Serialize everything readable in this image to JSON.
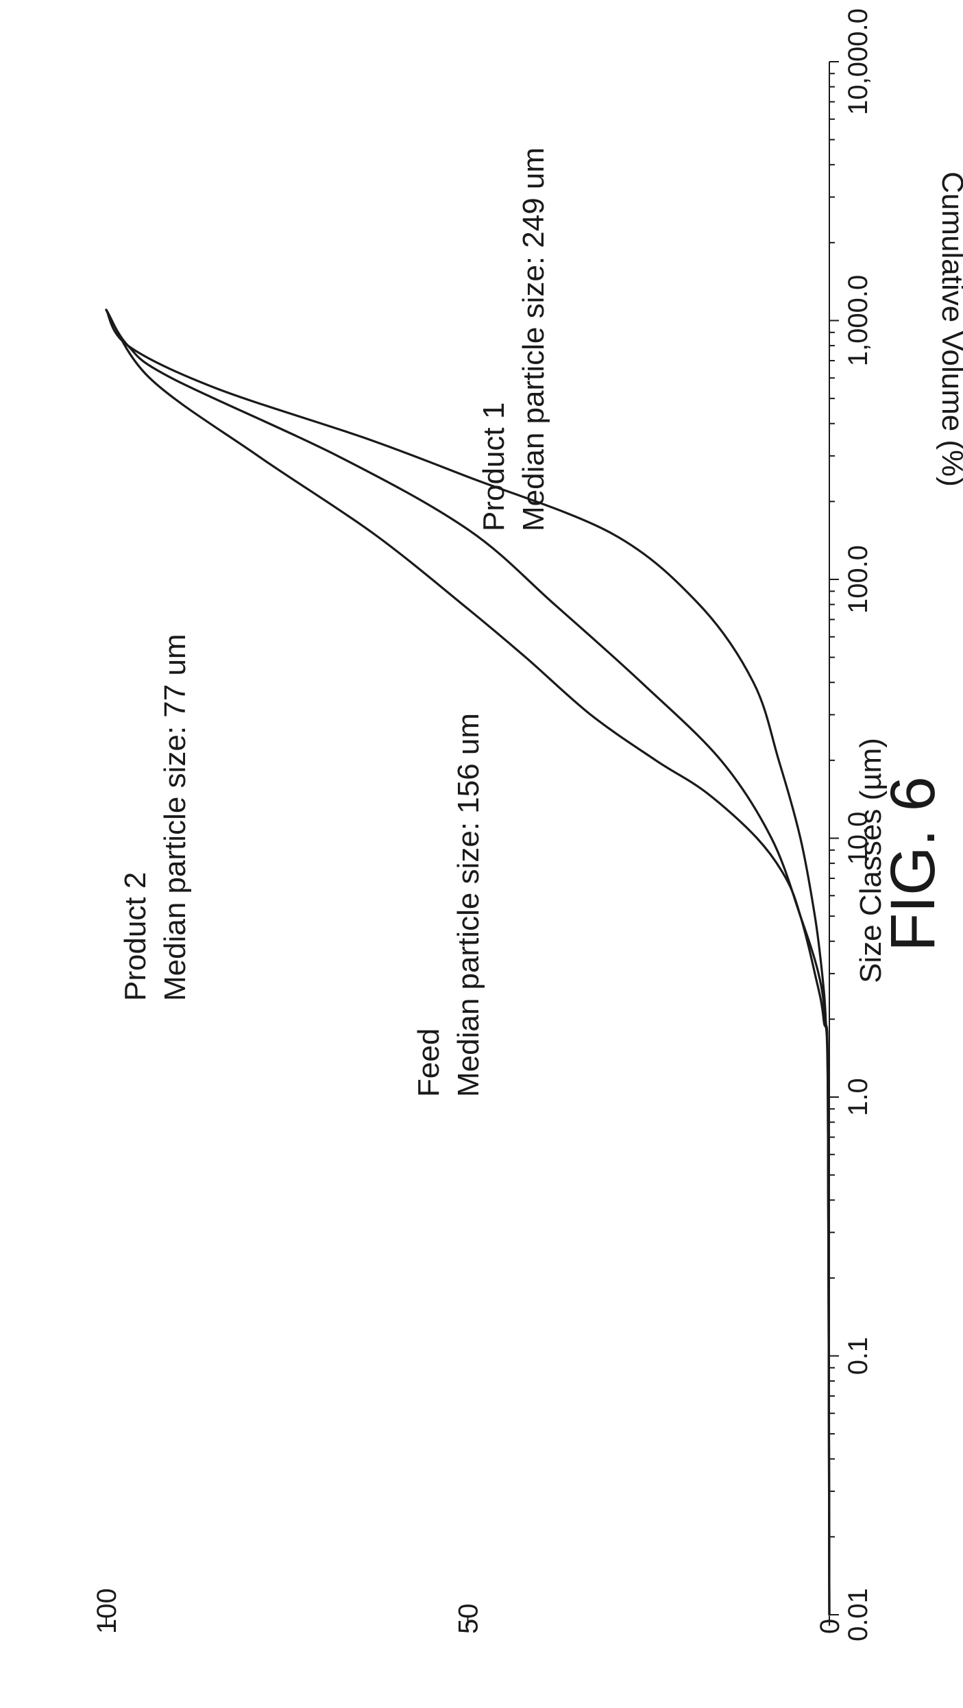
{
  "chart_data": {
    "type": "line",
    "title": "",
    "figure_label": "FIG. 6",
    "xlabel": "Size Classes (µm)",
    "ylabel": "Cumulative Volume (%)",
    "x_scale": "log",
    "xlim": [
      0.01,
      10000
    ],
    "ylim": [
      0,
      100
    ],
    "x_tick_labels": [
      "0.01",
      "0.1",
      "1.0",
      "10.0",
      "100.0",
      "1,000.0",
      "10,000.0"
    ],
    "y_tick_labels": [
      "0",
      "50",
      "100"
    ],
    "series": [
      {
        "name": "Feed",
        "annotation": [
          "Feed",
          "Median particle size: 156 um"
        ],
        "x": [
          0.01,
          1.0,
          2.0,
          3.0,
          5.0,
          10.0,
          20.0,
          40.0,
          80.0,
          156.0,
          300.0,
          600.0,
          800.0,
          1100.0
        ],
        "y": [
          0,
          0.2,
          0.6,
          1.5,
          4,
          8,
          15,
          26,
          38,
          50,
          68,
          91,
          97,
          100
        ]
      },
      {
        "name": "Product 1",
        "annotation": [
          "Product 1",
          "Median particle size: 249 um"
        ],
        "x": [
          0.01,
          1.0,
          2.0,
          3.0,
          5.0,
          10.0,
          20.0,
          40.0,
          80.0,
          150.0,
          249.0,
          350.0,
          550.0,
          800.0,
          1100.0
        ],
        "y": [
          0,
          0.2,
          0.5,
          1,
          2,
          4,
          7,
          10.5,
          18,
          30,
          50,
          64,
          85,
          97,
          100
        ]
      },
      {
        "name": "Product 2",
        "annotation": [
          "Product 2",
          "Median particle size: 77 um"
        ],
        "x": [
          0.01,
          1.0,
          2.0,
          3.0,
          5.0,
          7.0,
          10.0,
          15.0,
          20.0,
          30.0,
          50.0,
          77.0,
          150.0,
          300.0,
          600.0,
          1100.0
        ],
        "y": [
          0,
          0.2,
          0.8,
          2,
          4,
          6,
          10,
          17,
          24,
          33,
          42,
          50,
          63,
          79,
          94,
          100
        ]
      }
    ]
  }
}
